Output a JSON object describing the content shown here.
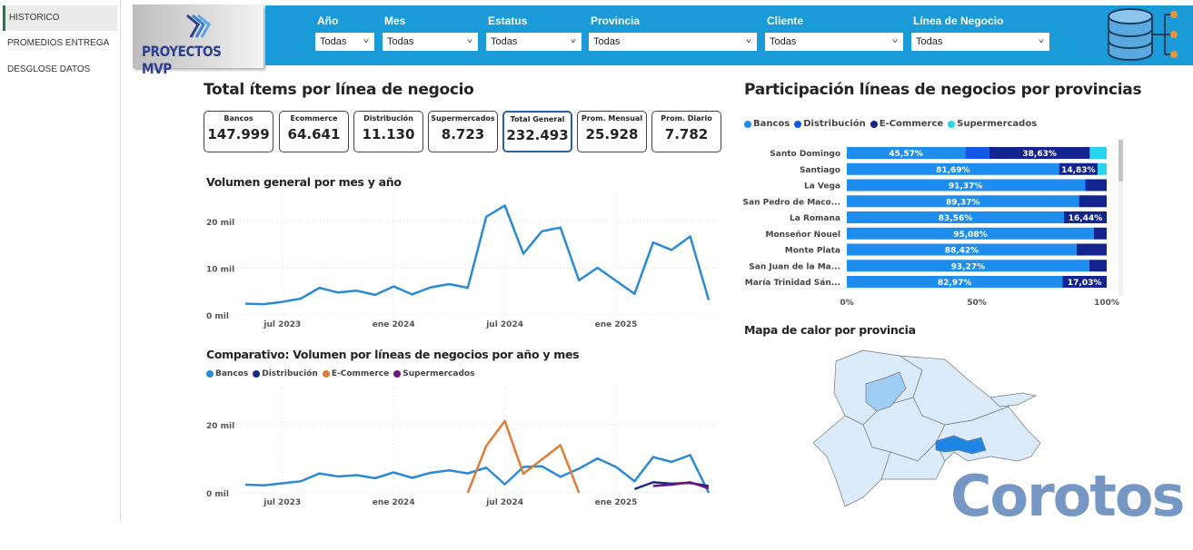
{
  "sidebar": {
    "items": [
      {
        "label": "HISTORICO",
        "active": true
      },
      {
        "label": "PROMEDIOS ENTREGA"
      },
      {
        "label": "DESGLOSE DATOS"
      }
    ]
  },
  "logo": {
    "text": "PROYECTOS MVP"
  },
  "filters": [
    {
      "label": "Año",
      "value": "Todas"
    },
    {
      "label": "Mes",
      "value": "Todas"
    },
    {
      "label": "Estatus",
      "value": "Todas"
    },
    {
      "label": "Provincia",
      "value": "Todas"
    },
    {
      "label": "Cliente",
      "value": "Todas"
    },
    {
      "label": "Línea de Negocio",
      "value": "Todas"
    }
  ],
  "header_icon": "database-network-icon",
  "kpi": {
    "title": "Total ítems por línea de negocio",
    "cards": [
      {
        "label": "Bancos",
        "value": "147.999"
      },
      {
        "label": "Ecommerce",
        "value": "64.641"
      },
      {
        "label": "Distribución",
        "value": "11.130"
      },
      {
        "label": "Supermercados",
        "value": "8.723"
      },
      {
        "label": "Total General",
        "value": "232.493"
      },
      {
        "label": "Prom. Mensual",
        "value": "25.928"
      },
      {
        "label": "Prom. Diario",
        "value": "7.782"
      }
    ]
  },
  "chart_data": [
    {
      "type": "line",
      "title": "Volumen general por mes y año",
      "x_ticks": [
        "jul 2023",
        "ene 2024",
        "jul 2024",
        "ene 2025"
      ],
      "y_ticks": [
        "0 mil",
        "10 mil",
        "20 mil"
      ],
      "ylim": [
        0,
        25000
      ],
      "grid": true,
      "x": [
        "2023-05",
        "2023-06",
        "2023-07",
        "2023-08",
        "2023-09",
        "2023-10",
        "2023-11",
        "2023-12",
        "2024-01",
        "2024-02",
        "2024-03",
        "2024-04",
        "2024-05",
        "2024-06",
        "2024-07",
        "2024-08",
        "2024-09",
        "2024-10",
        "2024-11",
        "2024-12",
        "2025-01",
        "2025-02",
        "2025-03",
        "2025-04",
        "2025-05",
        "2025-06"
      ],
      "series": [
        {
          "color": "#2b8ad8",
          "values": [
            2400,
            2300,
            2800,
            3500,
            5800,
            4800,
            5200,
            4300,
            6100,
            4400,
            5900,
            6600,
            5800,
            21000,
            23400,
            13100,
            17900,
            18700,
            7400,
            10100,
            7300,
            4500,
            15500,
            13900,
            16800,
            3200
          ]
        }
      ]
    },
    {
      "type": "line",
      "title": "Comparativo: Volumen por líneas de negocios por año y mes",
      "x_ticks": [
        "jul 2023",
        "ene 2024",
        "jul 2024",
        "ene 2025"
      ],
      "y_ticks": [
        "0 mil",
        "20 mil"
      ],
      "ylim": [
        0,
        28000
      ],
      "grid": true,
      "legend": "top-left",
      "x": [
        "2023-05",
        "2023-06",
        "2023-07",
        "2023-08",
        "2023-09",
        "2023-10",
        "2023-11",
        "2023-12",
        "2024-01",
        "2024-02",
        "2024-03",
        "2024-04",
        "2024-05",
        "2024-06",
        "2024-07",
        "2024-08",
        "2024-09",
        "2024-10",
        "2024-11",
        "2024-12",
        "2025-01",
        "2025-02",
        "2025-03",
        "2025-04",
        "2025-05",
        "2025-06"
      ],
      "series": [
        {
          "name": "Bancos",
          "color": "#2b8ad8",
          "values": [
            2400,
            2200,
            2800,
            3400,
            5700,
            4800,
            5200,
            4300,
            6000,
            4400,
            5900,
            6600,
            5700,
            7400,
            2500,
            7600,
            7800,
            4700,
            7100,
            10100,
            7600,
            3400,
            10500,
            9100,
            11100,
            0
          ]
        },
        {
          "name": "Distribución",
          "color": "#1a2a8c",
          "values": [
            null,
            null,
            null,
            null,
            null,
            null,
            null,
            null,
            null,
            null,
            null,
            null,
            null,
            null,
            null,
            null,
            null,
            null,
            null,
            null,
            null,
            1100,
            3100,
            2700,
            2900,
            2000
          ]
        },
        {
          "name": "E-Commerce",
          "color": "#e07b39",
          "values": [
            null,
            null,
            null,
            null,
            null,
            null,
            null,
            null,
            null,
            null,
            null,
            null,
            0,
            13800,
            21100,
            5600,
            9800,
            14000,
            0,
            null,
            null,
            null,
            null,
            null,
            null,
            null
          ]
        },
        {
          "name": "Supermercados",
          "color": "#6b1580",
          "values": [
            null,
            null,
            null,
            null,
            null,
            null,
            null,
            null,
            null,
            null,
            null,
            null,
            null,
            null,
            null,
            null,
            null,
            null,
            null,
            null,
            null,
            null,
            2000,
            2400,
            3100,
            1300
          ]
        }
      ]
    },
    {
      "type": "bar",
      "orientation": "horizontal",
      "stacked": "100%",
      "title": "Participación líneas de negocios por provincias",
      "legend": "top-left",
      "x_ticks": [
        "0%",
        "50%",
        "100%"
      ],
      "xlim": [
        0,
        100
      ],
      "categories": [
        "Santo Domingo",
        "Santiago",
        "La Vega",
        "San Pedro de Maco...",
        "La Romana",
        "Monseñor Nouel",
        "Monte Plata",
        "San Juan de la Ma...",
        "María Trinidad Sán..."
      ],
      "series": [
        {
          "name": "Bancos",
          "color": "#1f8ded",
          "values": [
            45.57,
            81.69,
            91.37,
            89.37,
            83.56,
            95.08,
            88.42,
            93.27,
            82.97
          ],
          "labels": [
            "45,57%",
            "81,69%",
            "91,37%",
            "89,37%",
            "83,56%",
            "95,08%",
            "88,42%",
            "93,27%",
            "82,97%"
          ]
        },
        {
          "name": "Distribución",
          "color": "#1257e6",
          "values": [
            9.3,
            0,
            0.6,
            0,
            0,
            0,
            0,
            0,
            0
          ],
          "labels": [
            "",
            "",
            "",
            "",
            "",
            "",
            "",
            "",
            ""
          ]
        },
        {
          "name": "E-Commerce",
          "color": "#14248e",
          "values": [
            38.63,
            14.83,
            8.03,
            10.63,
            16.44,
            4.92,
            11.58,
            6.73,
            17.03
          ],
          "labels": [
            "38,63%",
            "14,83%",
            "",
            "",
            "16,44%",
            "",
            "",
            "",
            "17,03%"
          ]
        },
        {
          "name": "Supermercados",
          "color": "#26d4ec",
          "values": [
            6.5,
            3.48,
            0,
            0,
            0,
            0,
            0,
            0,
            0
          ],
          "labels": [
            "",
            "",
            "",
            "",
            "",
            "",
            "",
            "",
            ""
          ]
        }
      ]
    }
  ],
  "map": {
    "title": "Mapa de calor por provincia",
    "base_color": "#dcebfb",
    "mid_color": "#9fcdf5",
    "high_color": "#1f86e6"
  },
  "watermark": {
    "text": "Corotos"
  }
}
